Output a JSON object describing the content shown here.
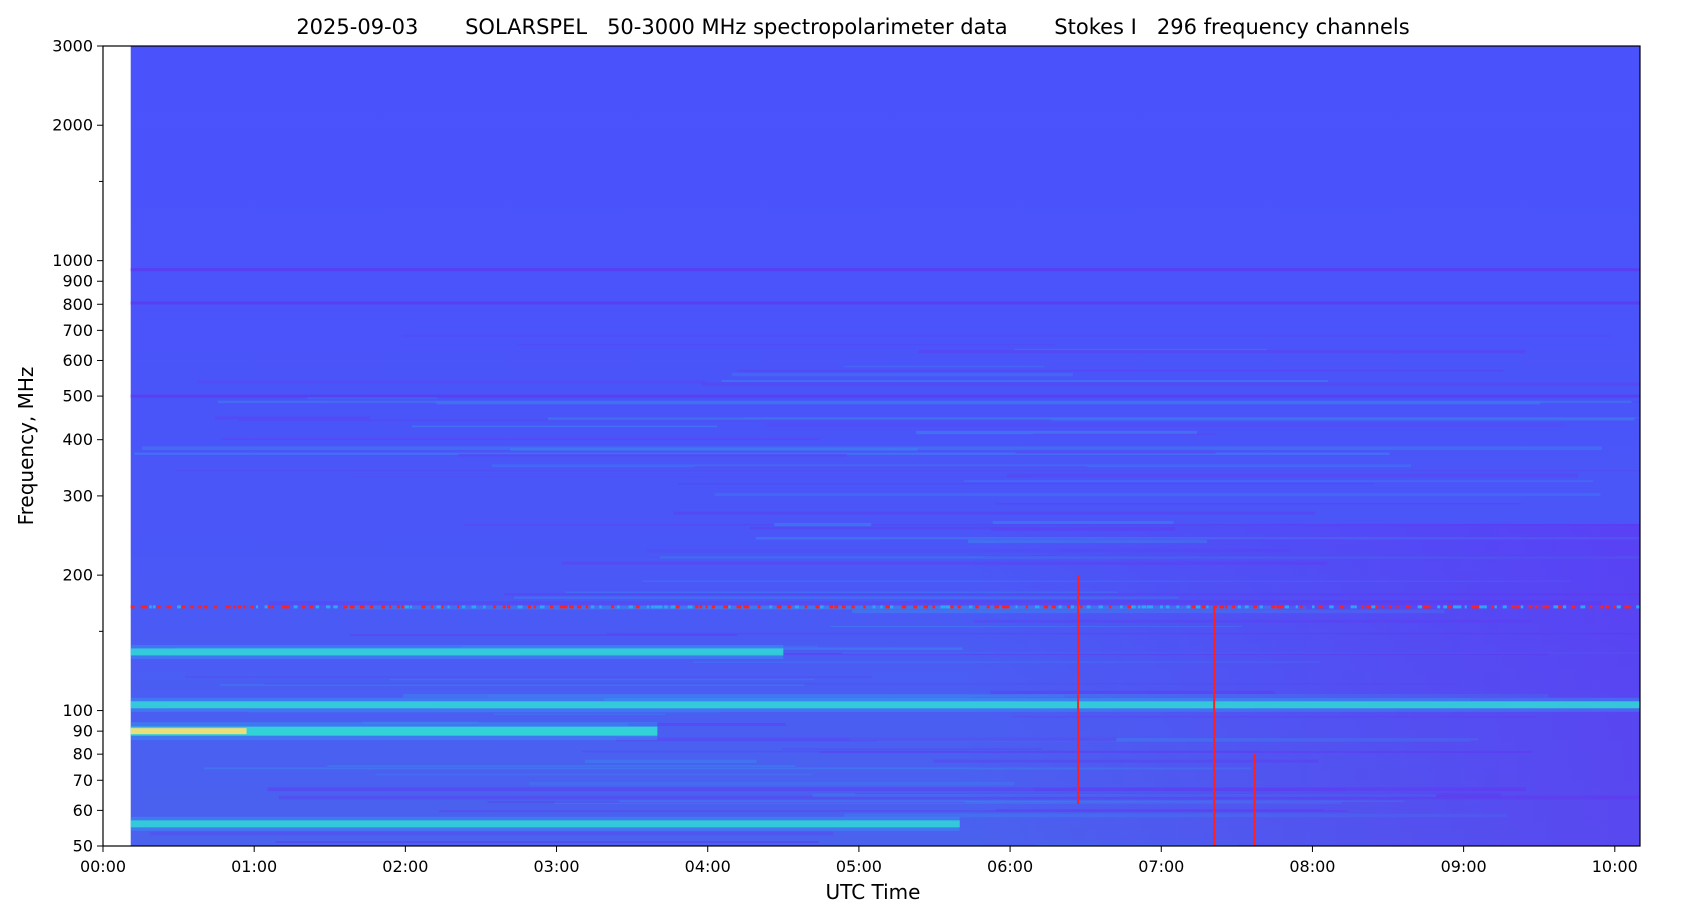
{
  "chart_data": {
    "type": "heatmap",
    "title": "2025-09-03       SOLARSPEL   50-3000 MHz spectropolarimeter data       Stokes I   296 frequency channels",
    "xlabel": "UTC Time",
    "ylabel": "Frequency, MHz",
    "y_scale": "log",
    "ylim": [
      50,
      3000
    ],
    "xlim": [
      "00:00",
      "10:10"
    ],
    "x_ticks": [
      "00:00",
      "01:00",
      "02:00",
      "03:00",
      "04:00",
      "05:00",
      "06:00",
      "07:00",
      "08:00",
      "09:00",
      "10:00"
    ],
    "y_ticks": [
      50,
      60,
      70,
      80,
      90,
      100,
      200,
      300,
      400,
      500,
      600,
      700,
      800,
      900,
      1000,
      2000,
      3000
    ],
    "data_start": "00:11",
    "colormap": "rainbow",
    "colors": {
      "background": "#4a55fb",
      "dark_band": "#5a3df0",
      "light_band": "#2aa8f2",
      "bright_band": "#36f0c8",
      "peak": "#ffe070",
      "spike": "#ff2020"
    },
    "features": [
      {
        "name": "persistent band",
        "freq_mhz": 955,
        "start": "00:11",
        "end": "10:10",
        "level": "dark"
      },
      {
        "name": "persistent band",
        "freq_mhz": 805,
        "start": "00:11",
        "end": "10:10",
        "level": "dark"
      },
      {
        "name": "persistent band",
        "freq_mhz": 500,
        "start": "00:11",
        "end": "10:10",
        "level": "dark"
      },
      {
        "name": "rfi line",
        "freq_mhz": 170,
        "start": "00:11",
        "end": "10:10",
        "level": "spike"
      },
      {
        "name": "bright band",
        "freq_mhz": 135,
        "start": "00:11",
        "end": "04:30",
        "level": "bright"
      },
      {
        "name": "bright band",
        "freq_mhz": 103,
        "start": "00:11",
        "end": "10:10",
        "level": "bright"
      },
      {
        "name": "bright band",
        "freq_mhz": 90,
        "start": "00:11",
        "end": "03:40",
        "level": "peak"
      },
      {
        "name": "bright band",
        "freq_mhz": 56,
        "start": "00:11",
        "end": "05:40",
        "level": "bright"
      },
      {
        "name": "burst",
        "time": "06:27",
        "freq_range_mhz": [
          62,
          200
        ],
        "level": "spike"
      },
      {
        "name": "burst",
        "time": "07:21",
        "freq_range_mhz": [
          50,
          170
        ],
        "level": "spike"
      },
      {
        "name": "burst",
        "time": "07:37",
        "freq_range_mhz": [
          50,
          80
        ],
        "level": "spike"
      }
    ]
  }
}
